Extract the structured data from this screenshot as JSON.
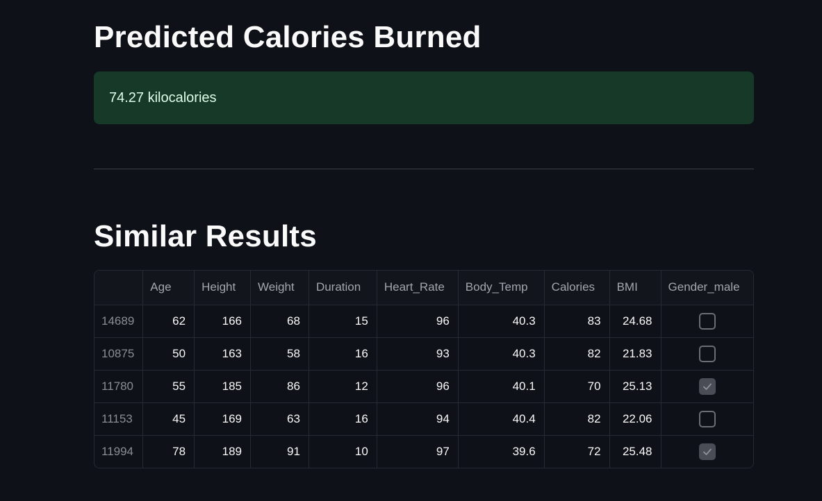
{
  "prediction": {
    "title": "Predicted Calories Burned",
    "result_text": "74.27 kilocalories",
    "alert_color": "#173928"
  },
  "similar": {
    "title": "Similar Results",
    "columns": [
      "",
      "Age",
      "Height",
      "Weight",
      "Duration",
      "Heart_Rate",
      "Body_Temp",
      "Calories",
      "BMI",
      "Gender_male"
    ],
    "rows": [
      {
        "index": "14689",
        "age": "62",
        "height": "166",
        "weight": "68",
        "duration": "15",
        "heart_rate": "96",
        "body_temp": "40.3",
        "calories": "83",
        "bmi": "24.68",
        "gender_male": false
      },
      {
        "index": "10875",
        "age": "50",
        "height": "163",
        "weight": "58",
        "duration": "16",
        "heart_rate": "93",
        "body_temp": "40.3",
        "calories": "82",
        "bmi": "21.83",
        "gender_male": false
      },
      {
        "index": "11780",
        "age": "55",
        "height": "185",
        "weight": "86",
        "duration": "12",
        "heart_rate": "96",
        "body_temp": "40.1",
        "calories": "70",
        "bmi": "25.13",
        "gender_male": true
      },
      {
        "index": "11153",
        "age": "45",
        "height": "169",
        "weight": "63",
        "duration": "16",
        "heart_rate": "94",
        "body_temp": "40.4",
        "calories": "82",
        "bmi": "22.06",
        "gender_male": false
      },
      {
        "index": "11994",
        "age": "78",
        "height": "189",
        "weight": "91",
        "duration": "10",
        "heart_rate": "97",
        "body_temp": "39.6",
        "calories": "72",
        "bmi": "25.48",
        "gender_male": true
      }
    ]
  }
}
